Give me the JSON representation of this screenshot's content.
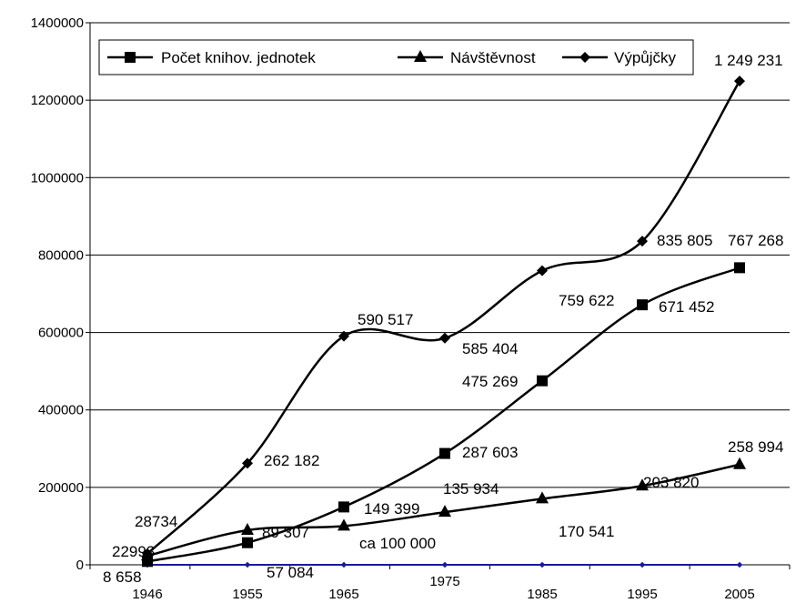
{
  "chart_data": {
    "type": "line",
    "x": [
      "1946",
      "1955",
      "1965",
      "1975",
      "1985",
      "1995",
      "2005"
    ],
    "ylim": [
      0,
      1400000
    ],
    "yticks": [
      "0",
      "200000",
      "400000",
      "600000",
      "800000",
      "1000000",
      "1200000",
      "1400000"
    ],
    "grid": true,
    "legend_position": "top",
    "series": [
      {
        "name": "Počet knihov. jednotek",
        "marker": "square",
        "values": [
          8658,
          57084,
          149399,
          287603,
          475269,
          671452,
          767268
        ],
        "labels": [
          "8 658",
          "57 084",
          "149 399",
          "287 603",
          "475 269",
          "671 452",
          "767 268"
        ]
      },
      {
        "name": "Návštěvnost",
        "marker": "triangle",
        "values": [
          22993,
          89307,
          100000,
          135934,
          170541,
          203820,
          258994
        ],
        "labels": [
          "22993",
          "89 307",
          "ca 100 000",
          "135 934",
          "170 541",
          "203 820",
          "258 994"
        ]
      },
      {
        "name": "Výpůjčky",
        "marker": "diamond",
        "values": [
          28734,
          262182,
          590517,
          585404,
          759622,
          835805,
          1249231
        ],
        "labels": [
          "28734",
          "262 182",
          "590 517",
          "585 404",
          "759 622",
          "835 805",
          "1 249 231"
        ]
      }
    ],
    "baseline_series": {
      "marker": "diamond",
      "color": "#1a1a99",
      "values": [
        0,
        0,
        0,
        0,
        0,
        0,
        0
      ]
    }
  }
}
